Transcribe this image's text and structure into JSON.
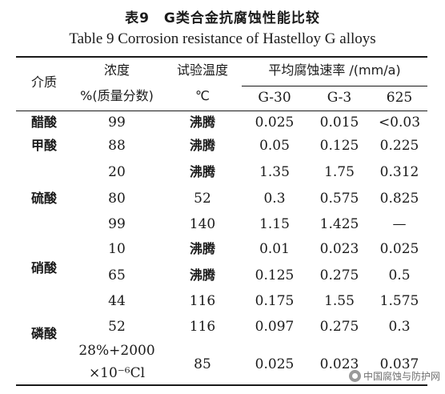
{
  "title_cn": "表9　G类合金抗腐蚀性能比较",
  "title_en": "Table 9   Corrosion resistance of Hastelloy G alloys",
  "header": {
    "medium": "介质",
    "conc_line1": "浓度",
    "conc_line2": "%(质量分数)",
    "temp_line1": "试验温度",
    "temp_line2": "℃",
    "rate": "平均腐蚀速率 /(mm/a)",
    "alloys": [
      "G-30",
      "G-3",
      "625"
    ]
  },
  "media": [
    {
      "name": "醋酸"
    },
    {
      "name": "甲酸"
    },
    {
      "name": "硫酸"
    },
    {
      "name": "硝酸"
    },
    {
      "name": "磷酸"
    }
  ],
  "rows": [
    {
      "conc": "99",
      "temp": "沸腾",
      "g30": "0.025",
      "g3": "0.015",
      "a625": "<0.03"
    },
    {
      "conc": "88",
      "temp": "沸腾",
      "g30": "0.05",
      "g3": "0.125",
      "a625": "0.225"
    },
    {
      "conc": "20",
      "temp": "沸腾",
      "g30": "1.35",
      "g3": "1.75",
      "a625": "0.312"
    },
    {
      "conc": "80",
      "temp": "52",
      "g30": "0.3",
      "g3": "0.575",
      "a625": "0.825"
    },
    {
      "conc": "99",
      "temp": "140",
      "g30": "1.15",
      "g3": "1.425",
      "a625": "—"
    },
    {
      "conc": "10",
      "temp": "沸腾",
      "g30": "0.01",
      "g3": "0.023",
      "a625": "0.025"
    },
    {
      "conc": "65",
      "temp": "沸腾",
      "g30": "0.125",
      "g3": "0.275",
      "a625": "0.5"
    },
    {
      "conc": "44",
      "temp": "116",
      "g30": "0.175",
      "g3": "1.55",
      "a625": "1.575"
    },
    {
      "conc": "52",
      "temp": "116",
      "g30": "0.097",
      "g3": "0.275",
      "a625": "0.3"
    },
    {
      "conc": "28%+2000",
      "conc2": "×10⁻⁶Cl",
      "temp": "85",
      "g30": "0.025",
      "g3": "0.023",
      "a625": "0.037"
    }
  ],
  "watermark": "中国腐蚀与防护网",
  "watermark_icon": "wechat-icon"
}
